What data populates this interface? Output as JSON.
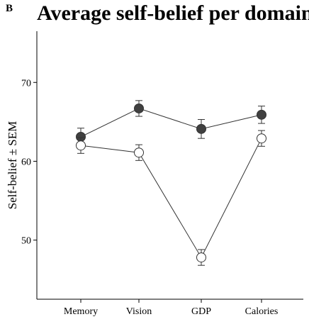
{
  "panel_label": "B",
  "chart_data": {
    "type": "line",
    "title": "Average self-belief per domain",
    "xlabel": "",
    "ylabel": "Self-belief ± SEM",
    "categories": [
      "Memory",
      "Vision",
      "GDP",
      "Calories"
    ],
    "yticks": [
      50,
      60,
      70
    ],
    "ylim": [
      42.5,
      76.5
    ],
    "grid": false,
    "legend": "none",
    "series": [
      {
        "marker": "filled-circle",
        "color": "#404040",
        "values": [
          63.1,
          66.7,
          64.1,
          65.9
        ],
        "sem": [
          1.1,
          1.0,
          1.2,
          1.1
        ]
      },
      {
        "marker": "open-circle",
        "color": "#ffffff",
        "values": [
          62.0,
          61.1,
          47.8,
          62.9
        ],
        "sem": [
          1.0,
          1.0,
          1.0,
          1.0
        ]
      }
    ]
  }
}
